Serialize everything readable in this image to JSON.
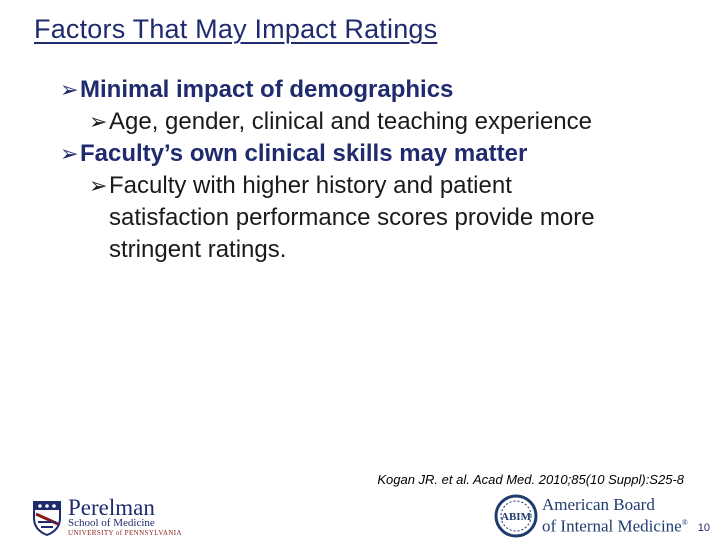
{
  "slide": {
    "title": "Factors That May Impact Ratings",
    "bullets": [
      {
        "level": 1,
        "text": "Minimal impact of demographics"
      },
      {
        "level": 2,
        "text": "Age, gender, clinical and teaching experience"
      },
      {
        "level": 1,
        "text": "Faculty’s own clinical skills may matter"
      },
      {
        "level": 2,
        "text": "Faculty with higher history and patient satisfaction performance scores provide more stringent ratings."
      }
    ],
    "citation": "Kogan JR. et al. Acad Med. 2010;85(10 Suppl):S25-8",
    "page_number": "10"
  },
  "footer": {
    "penn_logo": {
      "line1": "Perelman",
      "line2": "School of Medicine",
      "line3": "UNIVERSITY of PENNSYLVANIA"
    },
    "abim_logo": {
      "line1": "American Board",
      "line2": "of Internal Medicine",
      "mark": "®",
      "seal_text": "ABIM"
    }
  },
  "colors": {
    "title": "#1f2b6e",
    "bullet_level1": "#1f2b6e",
    "bullet_level2": "#1a1a1a"
  },
  "icons": {
    "bullet": "arrow-bullet-icon"
  }
}
